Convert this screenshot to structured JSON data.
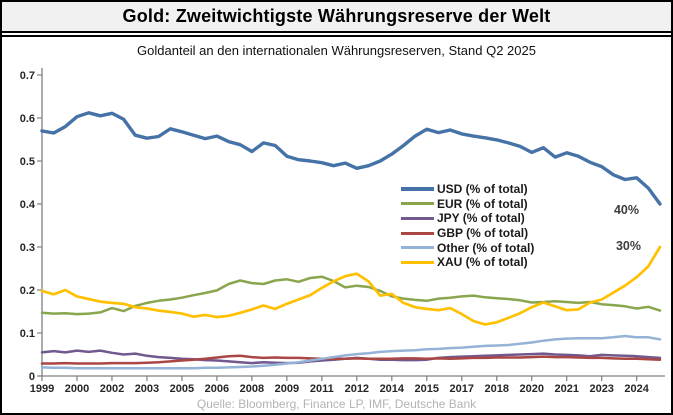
{
  "header": {
    "title": "Gold: Zweitwichtigste Währungsreserve der Welt",
    "subtitle": "Goldanteil an den internationalen Währungsreserven, Stand Q2 2025"
  },
  "footer": {
    "source": "Quelle: Bloomberg, Finance LP, IMF, Deutsche Bank"
  },
  "colors": {
    "usd": "#4572A7",
    "eur": "#89A54E",
    "jpy": "#71588F",
    "gbp": "#AA4643",
    "other": "#95B3D7",
    "xau": "#FFC000",
    "axis": "#808080",
    "title_bar_bg": "#f1f1f1",
    "source_text": "#b3b3b3"
  },
  "chart_data": {
    "type": "line",
    "title": "Gold: Zweitwichtigste Währungsreserve der Welt",
    "subtitle": "Goldanteil an den internationalen Währungsreserven, Stand Q2 2025",
    "xlabel": "",
    "ylabel": "",
    "grid": false,
    "legend_position": "center-right",
    "ylim": [
      0,
      0.7
    ],
    "yticks": [
      0,
      0.1,
      0.2,
      0.3,
      0.4,
      0.5,
      0.6,
      0.7
    ],
    "ytick_labels": [
      "0",
      "0.1",
      "0.2",
      "0.3",
      "0.4",
      "0.5",
      "0.6",
      "0.7"
    ],
    "xlim": [
      1999,
      2026.5
    ],
    "xticks": [
      1999,
      2000.5,
      2002,
      2003.5,
      2005,
      2006.5,
      2008,
      2009.5,
      2011,
      2012.5,
      2014,
      2015.5,
      2017,
      2018.5,
      2020,
      2021.5,
      2023,
      2024.5
    ],
    "xtick_labels": [
      "1999",
      "2000",
      "2002",
      "2003",
      "2005",
      "2006",
      "2008",
      "2009",
      "2011",
      "2012",
      "2014",
      "2015",
      "2017",
      "2018",
      "2020",
      "2021",
      "2023",
      "2024"
    ],
    "x": [
      1999,
      1999.5,
      2000,
      2000.5,
      2001,
      2001.5,
      2002,
      2002.5,
      2003,
      2003.5,
      2004,
      2004.5,
      2005,
      2005.5,
      2006,
      2006.5,
      2007,
      2007.5,
      2008,
      2008.5,
      2009,
      2009.5,
      2010,
      2010.5,
      2011,
      2011.5,
      2012,
      2012.5,
      2013,
      2013.5,
      2014,
      2014.5,
      2015,
      2015.5,
      2016,
      2016.5,
      2017,
      2017.5,
      2018,
      2018.5,
      2019,
      2019.5,
      2020,
      2020.5,
      2021,
      2021.5,
      2022,
      2022.5,
      2023,
      2023.5,
      2024,
      2024.5,
      2025,
      2025.5
    ],
    "series": [
      {
        "name": "USD (% of total)",
        "key": "usd",
        "color": "#4572A7",
        "stroke_width": 3.4,
        "values": [
          0.57,
          0.565,
          0.58,
          0.603,
          0.612,
          0.605,
          0.611,
          0.597,
          0.56,
          0.553,
          0.557,
          0.575,
          0.568,
          0.56,
          0.552,
          0.558,
          0.545,
          0.538,
          0.522,
          0.542,
          0.536,
          0.511,
          0.503,
          0.5,
          0.496,
          0.489,
          0.495,
          0.483,
          0.489,
          0.5,
          0.516,
          0.536,
          0.558,
          0.574,
          0.566,
          0.572,
          0.563,
          0.558,
          0.554,
          0.549,
          0.542,
          0.534,
          0.52,
          0.531,
          0.509,
          0.519,
          0.511,
          0.497,
          0.487,
          0.468,
          0.457,
          0.461,
          0.437,
          0.4
        ]
      },
      {
        "name": "EUR (% of total)",
        "key": "eur",
        "color": "#89A54E",
        "stroke_width": 2.5,
        "values": [
          0.147,
          0.145,
          0.146,
          0.144,
          0.145,
          0.148,
          0.158,
          0.151,
          0.163,
          0.17,
          0.175,
          0.178,
          0.182,
          0.188,
          0.193,
          0.199,
          0.214,
          0.222,
          0.216,
          0.214,
          0.222,
          0.225,
          0.219,
          0.228,
          0.231,
          0.221,
          0.206,
          0.21,
          0.207,
          0.198,
          0.185,
          0.18,
          0.177,
          0.175,
          0.18,
          0.182,
          0.185,
          0.187,
          0.183,
          0.181,
          0.179,
          0.176,
          0.171,
          0.172,
          0.174,
          0.172,
          0.17,
          0.172,
          0.167,
          0.165,
          0.162,
          0.157,
          0.161,
          0.152
        ]
      },
      {
        "name": "JPY (% of total)",
        "key": "jpy",
        "color": "#71588F",
        "stroke_width": 2.5,
        "values": [
          0.055,
          0.058,
          0.055,
          0.059,
          0.056,
          0.059,
          0.054,
          0.05,
          0.052,
          0.047,
          0.044,
          0.042,
          0.04,
          0.039,
          0.037,
          0.036,
          0.034,
          0.032,
          0.03,
          0.032,
          0.031,
          0.03,
          0.031,
          0.034,
          0.036,
          0.038,
          0.04,
          0.042,
          0.04,
          0.038,
          0.038,
          0.037,
          0.037,
          0.038,
          0.042,
          0.044,
          0.045,
          0.046,
          0.047,
          0.048,
          0.049,
          0.05,
          0.051,
          0.052,
          0.05,
          0.049,
          0.048,
          0.046,
          0.049,
          0.048,
          0.047,
          0.046,
          0.044,
          0.042
        ]
      },
      {
        "name": "GBP (% of total)",
        "key": "gbp",
        "color": "#AA4643",
        "stroke_width": 2.5,
        "values": [
          0.029,
          0.029,
          0.03,
          0.029,
          0.029,
          0.029,
          0.03,
          0.03,
          0.03,
          0.031,
          0.032,
          0.034,
          0.036,
          0.038,
          0.04,
          0.043,
          0.046,
          0.047,
          0.044,
          0.042,
          0.043,
          0.042,
          0.042,
          0.041,
          0.04,
          0.04,
          0.04,
          0.041,
          0.04,
          0.04,
          0.04,
          0.041,
          0.041,
          0.04,
          0.041,
          0.04,
          0.041,
          0.042,
          0.042,
          0.043,
          0.043,
          0.043,
          0.044,
          0.045,
          0.044,
          0.044,
          0.043,
          0.042,
          0.042,
          0.041,
          0.04,
          0.04,
          0.039,
          0.038
        ]
      },
      {
        "name": "Other (% of total)",
        "key": "other",
        "color": "#95B3D7",
        "stroke_width": 2.5,
        "values": [
          0.02,
          0.019,
          0.019,
          0.018,
          0.018,
          0.018,
          0.018,
          0.018,
          0.018,
          0.018,
          0.018,
          0.018,
          0.018,
          0.018,
          0.019,
          0.019,
          0.02,
          0.021,
          0.022,
          0.024,
          0.026,
          0.029,
          0.032,
          0.036,
          0.04,
          0.044,
          0.048,
          0.051,
          0.053,
          0.056,
          0.058,
          0.059,
          0.06,
          0.062,
          0.063,
          0.065,
          0.066,
          0.068,
          0.07,
          0.071,
          0.072,
          0.075,
          0.078,
          0.082,
          0.085,
          0.087,
          0.088,
          0.088,
          0.088,
          0.09,
          0.093,
          0.09,
          0.09,
          0.085
        ]
      },
      {
        "name": "XAU (% of total)",
        "key": "xau",
        "color": "#FFC000",
        "stroke_width": 2.7,
        "values": [
          0.198,
          0.19,
          0.2,
          0.185,
          0.179,
          0.173,
          0.17,
          0.168,
          0.16,
          0.157,
          0.152,
          0.149,
          0.145,
          0.138,
          0.142,
          0.137,
          0.14,
          0.147,
          0.155,
          0.164,
          0.156,
          0.168,
          0.178,
          0.188,
          0.205,
          0.22,
          0.232,
          0.238,
          0.22,
          0.187,
          0.191,
          0.17,
          0.16,
          0.156,
          0.153,
          0.158,
          0.144,
          0.128,
          0.12,
          0.125,
          0.135,
          0.146,
          0.16,
          0.171,
          0.162,
          0.153,
          0.155,
          0.171,
          0.178,
          0.194,
          0.21,
          0.23,
          0.255,
          0.3
        ]
      }
    ],
    "annotations": [
      {
        "text": "40%",
        "series": "USD (% of total)",
        "x": 2024.5,
        "y": 0.4
      },
      {
        "text": "30%",
        "series": "XAU (% of total)",
        "x": 2024.5,
        "y": 0.3
      }
    ]
  }
}
